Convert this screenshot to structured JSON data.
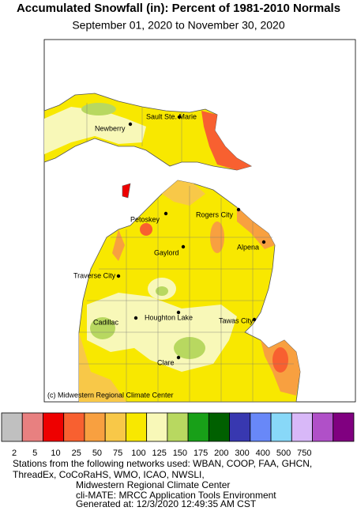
{
  "header": {
    "title": "Accumulated Snowfall (in): Percent of 1981-2010 Normals",
    "subtitle": "September 01, 2020 to November 30, 2020"
  },
  "map": {
    "credit": "(c) Midwestern Regional Climate Center",
    "cities": [
      "Newberry",
      "Sault Ste. Marie",
      "Petoskey",
      "Rogers City",
      "Gaylord",
      "Alpena",
      "Traverse City",
      "Houghton Lake",
      "Cadillac",
      "Tawas City",
      "Clare"
    ]
  },
  "legend": {
    "labels": [
      2,
      5,
      10,
      25,
      50,
      75,
      100,
      125,
      150,
      175,
      200,
      300,
      400,
      500,
      750
    ],
    "colors": [
      "#c0c0c0",
      "#e88080",
      "#ee0000",
      "#f86030",
      "#f8a040",
      "#f8c848",
      "#f8e800",
      "#f8f8b8",
      "#b8d860",
      "#18a018",
      "#006000",
      "#3838b0",
      "#6888f8",
      "#88d8f8",
      "#d8b8f8",
      "#b050c8",
      "#800080"
    ]
  },
  "footer": {
    "lines": [
      "Stations from the following networks used: WBAN, COOP, FAA, GHCN,",
      "ThreadEx, CoCoRaHS, WMO, ICAO, NWSLI,",
      "Midwestern Regional Climate Center",
      "cli-MATE: MRCC Application Tools Environment",
      "Generated at: 12/3/2020 12:49:35 AM CST"
    ]
  }
}
